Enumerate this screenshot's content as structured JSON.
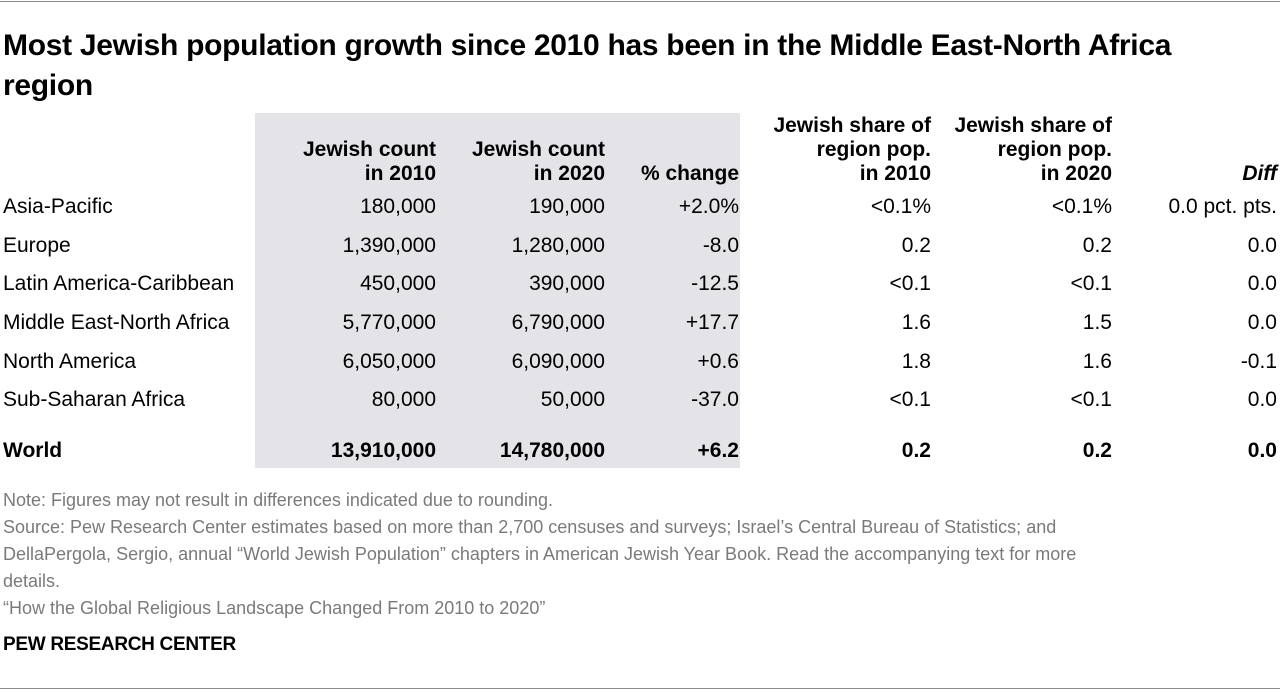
{
  "chart_data": {
    "type": "table",
    "title": "Most Jewish population growth since 2010 has been in the Middle East-North Africa region",
    "columns": [
      "",
      "Jewish count in 2010",
      "Jewish count in 2020",
      "% change",
      "Jewish share of region pop. in 2010",
      "Jewish share of region pop. in 2020",
      "Diff"
    ],
    "header_lines": [
      [],
      [
        "Jewish count",
        "in 2010"
      ],
      [
        "Jewish count",
        "in 2020"
      ],
      [
        "% change"
      ],
      [
        "Jewish share of",
        "region pop.",
        "in 2010"
      ],
      [
        "Jewish share of",
        "region pop.",
        "in 2020"
      ],
      [
        "Diff"
      ]
    ],
    "rows": [
      [
        "Asia-Pacific",
        "180,000",
        "190,000",
        "+2.0%",
        "<0.1%",
        "<0.1%",
        "0.0 pct. pts."
      ],
      [
        "Europe",
        "1,390,000",
        "1,280,000",
        "-8.0",
        "0.2",
        "0.2",
        "0.0"
      ],
      [
        "Latin America-Caribbean",
        "450,000",
        "390,000",
        "-12.5",
        "<0.1",
        "<0.1",
        "0.0"
      ],
      [
        "Middle East-North Africa",
        "5,770,000",
        "6,790,000",
        "+17.7",
        "1.6",
        "1.5",
        "0.0"
      ],
      [
        "North America",
        "6,050,000",
        "6,090,000",
        "+0.6",
        "1.8",
        "1.6",
        "-0.1"
      ],
      [
        "Sub-Saharan Africa",
        "80,000",
        "50,000",
        "-37.0",
        "<0.1",
        "<0.1",
        "0.0"
      ],
      [
        "World",
        "13,910,000",
        "14,780,000",
        "+6.2",
        "0.2",
        "0.2",
        "0.0"
      ]
    ],
    "total_row_index": 6,
    "shaded_columns": [
      1,
      2,
      3
    ],
    "shade_color": "#e3e3e8"
  },
  "notes": {
    "note": "Note: Figures may not result in differences indicated due to rounding.",
    "source_1": "Source: Pew Research Center estimates based on more than 2,700 censuses and surveys; Israel’s Central Bureau of Statistics; and",
    "source_2": "DellaPergola, Sergio, annual “World Jewish Population” chapters in American Jewish Year Book. Read the accompanying text for more",
    "source_3": "details.",
    "report": "“How the Global Religious Landscape Changed From 2010 to 2020”"
  },
  "brand": "PEW RESEARCH CENTER"
}
